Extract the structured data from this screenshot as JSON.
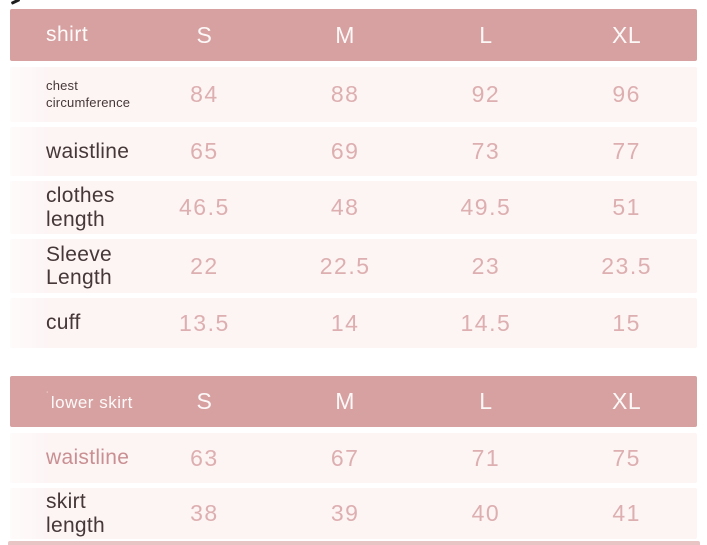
{
  "colors": {
    "header_bg": "#d8a1a1",
    "header_text": "#fdfafa",
    "row_bg": "#fdf4f4",
    "value_text": "#ddafb0",
    "label_dark": "#463838",
    "label_rose": "#c98f92",
    "bottom_strip": "#e9c4c4"
  },
  "size_columns": [
    "S",
    "M",
    "L",
    "XL"
  ],
  "tables": [
    {
      "title": "shirt",
      "title_prefix": "",
      "rows": [
        {
          "label": "chest circumference",
          "values": [
            "84",
            "88",
            "92",
            "96"
          ]
        },
        {
          "label": "waistline",
          "values": [
            "65",
            "69",
            "73",
            "77"
          ]
        },
        {
          "label": "clothes length",
          "values": [
            "46.5",
            "48",
            "49.5",
            "51"
          ]
        },
        {
          "label": "Sleeve Length",
          "values": [
            "22",
            "22.5",
            "23",
            "23.5"
          ]
        },
        {
          "label": "cuff",
          "values": [
            "13.5",
            "14",
            "14.5",
            "15"
          ]
        }
      ]
    },
    {
      "title": "lower skirt",
      "title_prefix": "˙",
      "rows": [
        {
          "label": "waistline",
          "values": [
            "63",
            "67",
            "71",
            "75"
          ]
        },
        {
          "label": "skirt length",
          "values": [
            "38",
            "39",
            "40",
            "41"
          ]
        }
      ]
    }
  ]
}
